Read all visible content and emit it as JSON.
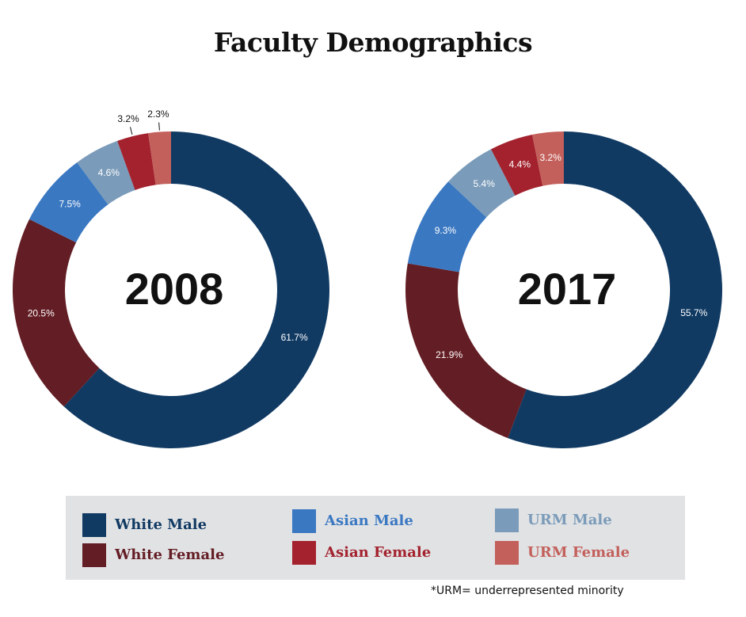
{
  "title": "Faculty Demographics",
  "colors": {
    "White Male": "#113a63",
    "White Female": "#631d24",
    "Asian Male": "#3a78c2",
    "Asian Female": "#a3222e",
    "URM Male": "#7a9bb9",
    "URM Female": "#c3605b"
  },
  "legend": {
    "items": [
      {
        "label": "White Male",
        "color": "#113a63"
      },
      {
        "label": "White Female",
        "color": "#631d24"
      },
      {
        "label": "Asian Male",
        "color": "#3a78c2"
      },
      {
        "label": "Asian Female",
        "color": "#a3222e"
      },
      {
        "label": "URM Male",
        "color": "#7a9bb9"
      },
      {
        "label": "URM Female",
        "color": "#c3605b"
      }
    ]
  },
  "footnote": "*URM= underrepresented minority",
  "chart_data": [
    {
      "type": "pie",
      "center_label": "2008",
      "categories": [
        "White Male",
        "White Female",
        "Asian Male",
        "URM Male",
        "Asian Female",
        "URM Female"
      ],
      "values": [
        61.7,
        20.5,
        7.5,
        4.6,
        3.2,
        2.3
      ],
      "labels": [
        "61.7%",
        "20.5%",
        "7.5%",
        "4.6%",
        "3.2%",
        "2.3%"
      ]
    },
    {
      "type": "pie",
      "center_label": "2017",
      "categories": [
        "White Male",
        "White Female",
        "Asian Male",
        "URM Male",
        "Asian Female",
        "URM Female"
      ],
      "values": [
        55.7,
        21.9,
        9.3,
        5.4,
        4.4,
        3.2
      ],
      "labels": [
        "55.7%",
        "21.9%",
        "9.3%",
        "5.4%",
        "4.4%",
        "3.2%"
      ]
    }
  ]
}
